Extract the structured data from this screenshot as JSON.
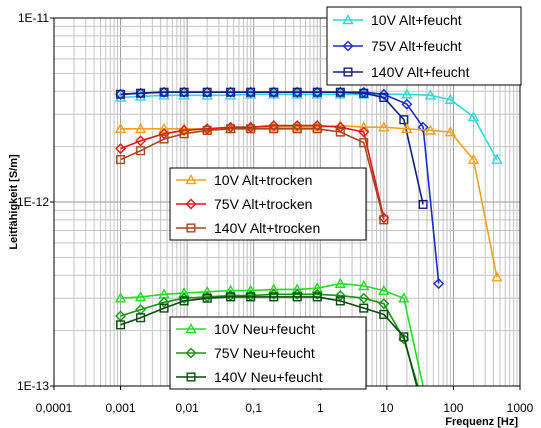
{
  "chart_data": {
    "type": "line",
    "title": "",
    "xlabel": "Frequenz [Hz]",
    "ylabel": "Leitfähigkeit [S/m]",
    "xscale": "log",
    "yscale": "log",
    "xlim": [
      0.0001,
      1000
    ],
    "ylim": [
      1e-13,
      1e-11
    ],
    "grid": true,
    "x_tick_labels": [
      "0,0001",
      "0,001",
      "0,01",
      "0,1",
      "1",
      "10",
      "100",
      "1000"
    ],
    "y_tick_labels": [
      "1E-13",
      "1E-12",
      "1E-11"
    ],
    "legends": [
      {
        "placement": "top-right",
        "entries": [
          "10V Alt+feucht",
          "75V Alt+feucht",
          "140V Alt+feucht"
        ]
      },
      {
        "placement": "center",
        "entries": [
          "10V Alt+trocken",
          "75V Alt+trocken",
          "140V Alt+trocken"
        ]
      },
      {
        "placement": "bottom-center",
        "entries": [
          "10V Neu+feucht",
          "75V Neu+feucht",
          "140V Neu+feucht"
        ]
      }
    ],
    "series": [
      {
        "name": "10V Alt+feucht",
        "color": "#33d8d8",
        "marker": "triangle",
        "x": [
          0.001,
          0.002,
          0.0045,
          0.009,
          0.02,
          0.045,
          0.09,
          0.2,
          0.45,
          0.9,
          2,
          4.5,
          9,
          20,
          45,
          90,
          200,
          450
        ],
        "y": [
          3.7e-12,
          3.75e-12,
          3.8e-12,
          3.8e-12,
          3.8e-12,
          3.8e-12,
          3.85e-12,
          3.85e-12,
          3.85e-12,
          3.85e-12,
          3.85e-12,
          3.85e-12,
          3.85e-12,
          3.85e-12,
          3.8e-12,
          3.6e-12,
          2.9e-12,
          1.7e-12
        ]
      },
      {
        "name": "75V Alt+feucht",
        "color": "#1f2bc9",
        "marker": "diamond",
        "x": [
          0.001,
          0.002,
          0.0045,
          0.009,
          0.02,
          0.045,
          0.09,
          0.2,
          0.45,
          0.9,
          2,
          4.5,
          9,
          20,
          35,
          60
        ],
        "y": [
          3.85e-12,
          3.9e-12,
          3.95e-12,
          3.95e-12,
          3.95e-12,
          3.95e-12,
          3.95e-12,
          3.95e-12,
          3.95e-12,
          3.95e-12,
          3.95e-12,
          3.95e-12,
          3.85e-12,
          3.4e-12,
          2.55e-12,
          3.6e-13
        ]
      },
      {
        "name": "140V Alt+feucht",
        "color": "#141c84",
        "marker": "square",
        "x": [
          0.001,
          0.002,
          0.0045,
          0.009,
          0.02,
          0.045,
          0.09,
          0.2,
          0.45,
          0.9,
          2,
          4.5,
          9,
          18,
          35
        ],
        "y": [
          3.85e-12,
          3.9e-12,
          3.95e-12,
          3.95e-12,
          3.95e-12,
          3.95e-12,
          3.95e-12,
          3.95e-12,
          3.95e-12,
          3.95e-12,
          3.95e-12,
          3.9e-12,
          3.7e-12,
          2.8e-12,
          9.7e-13
        ]
      },
      {
        "name": "10V Alt+trocken",
        "color": "#f5a01e",
        "marker": "triangle",
        "x": [
          0.001,
          0.002,
          0.0045,
          0.009,
          0.02,
          0.045,
          0.09,
          0.2,
          0.45,
          0.9,
          2,
          4.5,
          9,
          20,
          45,
          90,
          200,
          450
        ],
        "y": [
          2.5e-12,
          2.5e-12,
          2.5e-12,
          2.5e-12,
          2.5e-12,
          2.5e-12,
          2.55e-12,
          2.55e-12,
          2.55e-12,
          2.55e-12,
          2.6e-12,
          2.55e-12,
          2.55e-12,
          2.5e-12,
          2.45e-12,
          2.4e-12,
          1.7e-12,
          3.9e-13
        ]
      },
      {
        "name": "75V Alt+trocken",
        "color": "#e01818",
        "marker": "diamond",
        "x": [
          0.001,
          0.002,
          0.0045,
          0.009,
          0.02,
          0.045,
          0.09,
          0.2,
          0.45,
          0.9,
          2,
          4.5,
          9
        ],
        "y": [
          1.95e-12,
          2.15e-12,
          2.35e-12,
          2.45e-12,
          2.5e-12,
          2.55e-12,
          2.55e-12,
          2.6e-12,
          2.6e-12,
          2.6e-12,
          2.55e-12,
          2.4e-12,
          8.2e-13
        ]
      },
      {
        "name": "140V Alt+trocken",
        "color": "#a8461e",
        "marker": "square",
        "x": [
          0.001,
          0.002,
          0.0045,
          0.009,
          0.02,
          0.045,
          0.09,
          0.2,
          0.45,
          0.9,
          2,
          4.5,
          9
        ],
        "y": [
          1.7e-12,
          1.9e-12,
          2.2e-12,
          2.35e-12,
          2.45e-12,
          2.5e-12,
          2.5e-12,
          2.5e-12,
          2.5e-12,
          2.5e-12,
          2.4e-12,
          2.1e-12,
          8e-13
        ]
      },
      {
        "name": "10V Neu+feucht",
        "color": "#22dd22",
        "marker": "triangle",
        "x": [
          0.001,
          0.002,
          0.0045,
          0.009,
          0.02,
          0.045,
          0.09,
          0.2,
          0.45,
          0.9,
          2,
          4.5,
          9,
          18,
          40
        ],
        "y": [
          3e-13,
          3.05e-13,
          3.15e-13,
          3.2e-13,
          3.25e-13,
          3.3e-13,
          3.3e-13,
          3.35e-13,
          3.35e-13,
          3.4e-13,
          3.6e-13,
          3.5e-13,
          3.3e-13,
          3e-13,
          8e-14
        ]
      },
      {
        "name": "75V Neu+feucht",
        "color": "#149614",
        "marker": "diamond",
        "x": [
          0.001,
          0.002,
          0.0045,
          0.009,
          0.02,
          0.045,
          0.09,
          0.2,
          0.45,
          0.9,
          2,
          4.5,
          9,
          18,
          35
        ],
        "y": [
          2.4e-13,
          2.6e-13,
          2.85e-13,
          3e-13,
          3.05e-13,
          3.1e-13,
          3.1e-13,
          3.15e-13,
          3.15e-13,
          3.15e-13,
          3.1e-13,
          3e-13,
          2.8e-13,
          1.8e-13,
          8e-14
        ]
      },
      {
        "name": "140V Neu+feucht",
        "color": "#0c4a10",
        "marker": "square",
        "x": [
          0.001,
          0.002,
          0.0045,
          0.009,
          0.02,
          0.045,
          0.09,
          0.2,
          0.45,
          0.9,
          2,
          4.5,
          9,
          18,
          33
        ],
        "y": [
          2.15e-13,
          2.35e-13,
          2.65e-13,
          2.9e-13,
          3e-13,
          3.05e-13,
          3.05e-13,
          3.05e-13,
          3.05e-13,
          3.05e-13,
          2.9e-13,
          2.65e-13,
          2.45e-13,
          1.85e-13,
          8e-14
        ]
      }
    ]
  }
}
